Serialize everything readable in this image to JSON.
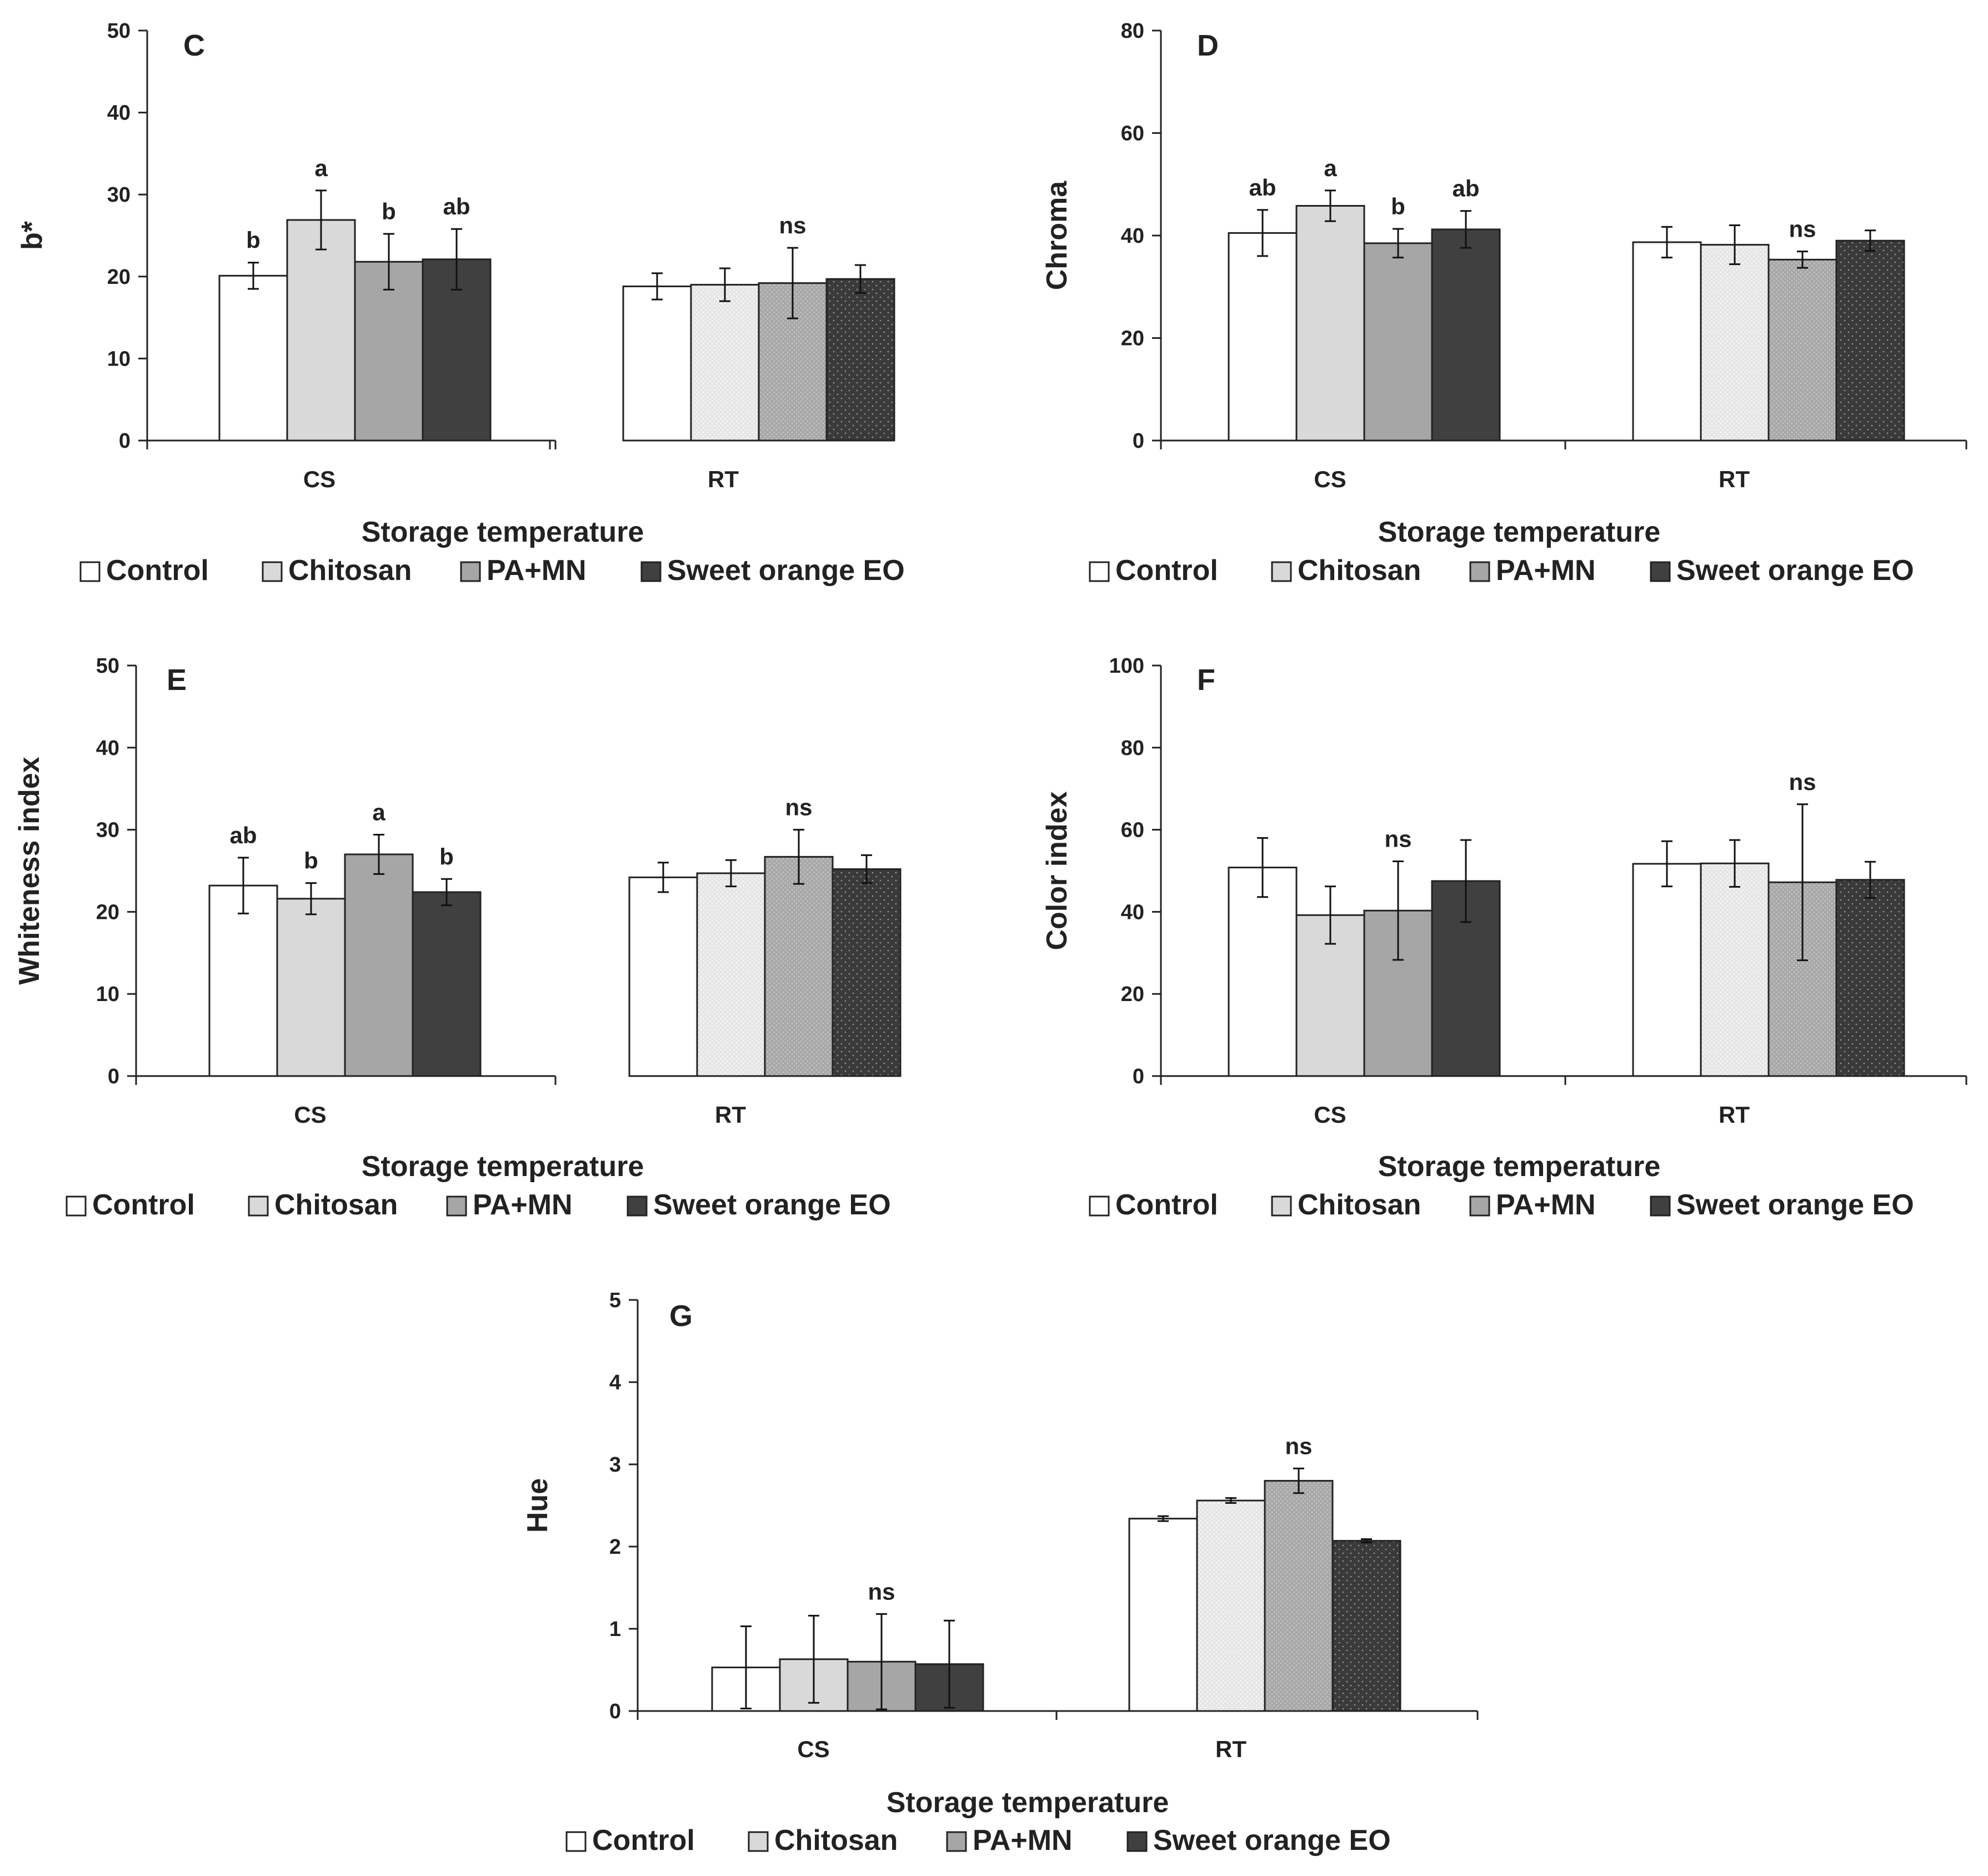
{
  "figure": {
    "xlabel": "Storage temperature",
    "legend": [
      "Control",
      "Chitosan",
      "PA+MN",
      "Sweet orange EO"
    ],
    "colors": {
      "Control": "#ffffff",
      "Chitosan": "#d9d9d9",
      "PA+MN": "#a6a6a6",
      "SweetOrangeEO": "#404040",
      "Axis": "#222222"
    }
  },
  "chart_data": [
    {
      "type": "bar",
      "panel": "C",
      "ylabel": "b*",
      "ylim": [
        0,
        50
      ],
      "yticks": [
        0,
        10,
        20,
        30,
        40,
        50
      ],
      "categories": [
        "CS",
        "RT"
      ],
      "series": [
        {
          "name": "Control",
          "values": [
            20.1,
            18.8
          ],
          "errors": [
            1.6,
            1.6
          ]
        },
        {
          "name": "Chitosan",
          "values": [
            26.9,
            19.0
          ],
          "errors": [
            3.6,
            2.0
          ]
        },
        {
          "name": "PA+MN",
          "values": [
            21.8,
            19.2
          ],
          "errors": [
            3.4,
            4.3
          ]
        },
        {
          "name": "Sweet orange EO",
          "values": [
            22.1,
            19.7
          ],
          "errors": [
            3.7,
            1.7
          ]
        }
      ],
      "annotations": [
        [
          "b",
          "a",
          "b",
          "ab"
        ],
        [
          "",
          "",
          "ns",
          ""
        ]
      ]
    },
    {
      "type": "bar",
      "panel": "D",
      "ylabel": "Chroma",
      "ylim": [
        0,
        80
      ],
      "yticks": [
        0,
        20,
        40,
        60,
        80
      ],
      "categories": [
        "CS",
        "RT"
      ],
      "series": [
        {
          "name": "Control",
          "values": [
            40.5,
            38.7
          ],
          "errors": [
            4.5,
            3.0
          ]
        },
        {
          "name": "Chitosan",
          "values": [
            45.8,
            38.2
          ],
          "errors": [
            3.0,
            3.8
          ]
        },
        {
          "name": "PA+MN",
          "values": [
            38.5,
            35.3
          ],
          "errors": [
            2.8,
            1.6
          ]
        },
        {
          "name": "Sweet orange EO",
          "values": [
            41.2,
            39.0
          ],
          "errors": [
            3.6,
            2.0
          ]
        }
      ],
      "annotations": [
        [
          "ab",
          "a",
          "b",
          "ab"
        ],
        [
          "",
          "",
          "ns",
          ""
        ]
      ]
    },
    {
      "type": "bar",
      "panel": "E",
      "ylabel": "Whiteness index",
      "ylim": [
        0,
        50
      ],
      "yticks": [
        0,
        10,
        20,
        30,
        40,
        50
      ],
      "categories": [
        "CS",
        "RT"
      ],
      "series": [
        {
          "name": "Control",
          "values": [
            23.2,
            24.2
          ],
          "errors": [
            3.4,
            1.8
          ]
        },
        {
          "name": "Chitosan",
          "values": [
            21.6,
            24.7
          ],
          "errors": [
            1.9,
            1.6
          ]
        },
        {
          "name": "PA+MN",
          "values": [
            27.0,
            26.7
          ],
          "errors": [
            2.4,
            3.3
          ]
        },
        {
          "name": "Sweet orange EO",
          "values": [
            22.4,
            25.2
          ],
          "errors": [
            1.6,
            1.7
          ]
        }
      ],
      "annotations": [
        [
          "ab",
          "b",
          "a",
          "b"
        ],
        [
          "",
          "",
          "ns",
          ""
        ]
      ]
    },
    {
      "type": "bar",
      "panel": "F",
      "ylabel": "Color index",
      "ylim": [
        0,
        100
      ],
      "yticks": [
        0,
        20,
        40,
        60,
        80,
        100
      ],
      "categories": [
        "CS",
        "RT"
      ],
      "series": [
        {
          "name": "Control",
          "values": [
            50.8,
            51.7
          ],
          "errors": [
            7.2,
            5.5
          ]
        },
        {
          "name": "Chitosan",
          "values": [
            39.2,
            51.8
          ],
          "errors": [
            7.0,
            5.7
          ]
        },
        {
          "name": "PA+MN",
          "values": [
            40.3,
            47.2
          ],
          "errors": [
            12.0,
            19.0
          ]
        },
        {
          "name": "Sweet orange EO",
          "values": [
            47.5,
            47.8
          ],
          "errors": [
            10.0,
            4.4
          ]
        }
      ],
      "annotations": [
        [
          "",
          "",
          "ns",
          ""
        ],
        [
          "",
          "",
          "ns",
          ""
        ]
      ]
    },
    {
      "type": "bar",
      "panel": "G",
      "ylabel": "Hue",
      "ylim": [
        0,
        5
      ],
      "yticks": [
        0,
        1,
        2,
        3,
        4,
        5
      ],
      "categories": [
        "CS",
        "RT"
      ],
      "series": [
        {
          "name": "Control",
          "values": [
            0.53,
            2.34
          ],
          "errors": [
            0.5,
            0.03
          ]
        },
        {
          "name": "Chitosan",
          "values": [
            0.63,
            2.56
          ],
          "errors": [
            0.53,
            0.03
          ]
        },
        {
          "name": "PA+MN",
          "values": [
            0.6,
            2.8
          ],
          "errors": [
            0.58,
            0.15
          ]
        },
        {
          "name": "Sweet orange EO",
          "values": [
            0.57,
            2.07
          ],
          "errors": [
            0.53,
            0.02
          ]
        }
      ],
      "annotations": [
        [
          "",
          "",
          "ns",
          ""
        ],
        [
          "",
          "",
          "ns",
          ""
        ]
      ]
    }
  ]
}
